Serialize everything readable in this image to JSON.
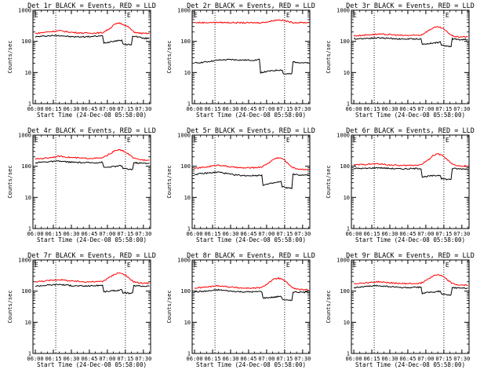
{
  "figure": {
    "subtitle": "Start Time (24-Dec-08 05:58:00)",
    "ylabel": "Counts/sec",
    "x_ticks": [
      "06:00",
      "06:15",
      "06:30",
      "06:45",
      "07:00",
      "07:15",
      "07:30"
    ],
    "y_ticks": [
      "1",
      "10",
      "100",
      "1000"
    ],
    "marker": "E",
    "colors": {
      "events": "#000000",
      "lld": "#ff0000"
    }
  },
  "chart_data": [
    {
      "type": "line",
      "title": "Det 1r BLACK = Events, RED = LLD",
      "xlabel": "Start Time (24-Dec-08 05:58:00)",
      "ylabel": "Counts/sec",
      "xlim": [
        -2,
        96
      ],
      "ylim": [
        1,
        1000
      ],
      "yscale": "log",
      "marker_lines_min": [
        17,
        75
      ],
      "series": [
        {
          "name": "Events",
          "color": "#000000",
          "x": [
            0,
            10,
            20,
            30,
            40,
            50,
            56,
            57,
            62,
            63,
            68,
            72,
            73,
            78,
            80,
            81,
            85,
            88,
            89,
            95
          ],
          "values": [
            140,
            150,
            155,
            140,
            140,
            145,
            150,
            90,
            95,
            100,
            105,
            110,
            80,
            80,
            75,
            150,
            140,
            135,
            125,
            125
          ]
        },
        {
          "name": "LLD",
          "color": "#ff0000",
          "x": [
            0,
            10,
            20,
            30,
            40,
            50,
            56,
            62,
            66,
            70,
            74,
            78,
            82,
            86,
            90,
            95
          ],
          "values": [
            180,
            200,
            220,
            195,
            185,
            185,
            190,
            260,
            350,
            390,
            340,
            280,
            200,
            185,
            180,
            180
          ]
        }
      ]
    },
    {
      "type": "line",
      "title": "Det 2r BLACK = Events, RED = LLD",
      "xlabel": "Start Time (24-Dec-08 05:58:00)",
      "ylabel": "Counts/sec",
      "xlim": [
        -2,
        96
      ],
      "ylim": [
        1,
        1000
      ],
      "yscale": "log",
      "marker_lines_min": [
        17,
        75
      ],
      "series": [
        {
          "name": "Events",
          "color": "#000000",
          "x": [
            0,
            10,
            20,
            30,
            40,
            50,
            54,
            55,
            62,
            70,
            73,
            74,
            78,
            81,
            82,
            88,
            95
          ],
          "values": [
            20,
            22,
            25,
            26,
            25,
            25,
            26,
            10,
            11,
            12,
            12,
            9,
            9,
            9,
            22,
            21,
            20
          ]
        },
        {
          "name": "LLD",
          "color": "#ff0000",
          "x": [
            0,
            10,
            20,
            30,
            40,
            50,
            56,
            62,
            66,
            70,
            74,
            78,
            82,
            88,
            95
          ],
          "values": [
            400,
            400,
            405,
            400,
            395,
            395,
            400,
            430,
            470,
            490,
            470,
            430,
            400,
            400,
            400
          ]
        }
      ]
    },
    {
      "type": "line",
      "title": "Det 3r BLACK = Events, RED = LLD",
      "xlabel": "Start Time (24-Dec-08 05:58:00)",
      "ylabel": "Counts/sec",
      "xlim": [
        -2,
        96
      ],
      "ylim": [
        1,
        1000
      ],
      "yscale": "log",
      "marker_lines_min": [
        17,
        75
      ],
      "series": [
        {
          "name": "Events",
          "color": "#000000",
          "x": [
            0,
            10,
            20,
            30,
            40,
            50,
            56,
            57,
            62,
            68,
            72,
            73,
            78,
            81,
            82,
            88,
            95
          ],
          "values": [
            120,
            125,
            130,
            125,
            118,
            120,
            120,
            80,
            85,
            90,
            95,
            75,
            70,
            70,
            120,
            115,
            115
          ]
        },
        {
          "name": "LLD",
          "color": "#ff0000",
          "x": [
            0,
            10,
            20,
            30,
            40,
            50,
            56,
            62,
            66,
            70,
            74,
            78,
            82,
            86,
            90,
            95
          ],
          "values": [
            150,
            160,
            170,
            165,
            155,
            155,
            160,
            220,
            270,
            290,
            260,
            200,
            150,
            140,
            140,
            140
          ]
        }
      ]
    },
    {
      "type": "line",
      "title": "Det 4r BLACK = Events, RED = LLD",
      "xlabel": "Start Time (24-Dec-08 05:58:00)",
      "ylabel": "Counts/sec",
      "xlim": [
        -2,
        96
      ],
      "ylim": [
        1,
        1000
      ],
      "yscale": "log",
      "marker_lines_min": [
        17,
        75
      ],
      "series": [
        {
          "name": "Events",
          "color": "#000000",
          "x": [
            0,
            10,
            20,
            30,
            40,
            50,
            56,
            57,
            62,
            68,
            72,
            73,
            78,
            81,
            82,
            88,
            95
          ],
          "values": [
            130,
            140,
            145,
            135,
            130,
            130,
            135,
            90,
            95,
            100,
            105,
            85,
            80,
            80,
            130,
            125,
            125
          ]
        },
        {
          "name": "LLD",
          "color": "#ff0000",
          "x": [
            0,
            10,
            20,
            30,
            40,
            50,
            56,
            62,
            66,
            70,
            74,
            78,
            82,
            86,
            90,
            95
          ],
          "values": [
            170,
            185,
            210,
            190,
            180,
            180,
            185,
            250,
            310,
            340,
            300,
            240,
            180,
            165,
            160,
            160
          ]
        }
      ]
    },
    {
      "type": "line",
      "title": "Det 5r BLACK = Events, RED = LLD",
      "xlabel": "Start Time (24-Dec-08 05:58:00)",
      "ylabel": "Counts/sec",
      "xlim": [
        -2,
        96
      ],
      "ylim": [
        1,
        1000
      ],
      "yscale": "log",
      "marker_lines_min": [
        17,
        75
      ],
      "series": [
        {
          "name": "Events",
          "color": "#000000",
          "x": [
            0,
            10,
            20,
            30,
            40,
            50,
            56,
            57,
            62,
            68,
            72,
            73,
            78,
            81,
            82,
            88,
            95
          ],
          "values": [
            55,
            60,
            65,
            55,
            50,
            50,
            52,
            25,
            27,
            30,
            32,
            22,
            20,
            20,
            55,
            52,
            52
          ]
        },
        {
          "name": "LLD",
          "color": "#ff0000",
          "x": [
            0,
            10,
            20,
            30,
            40,
            50,
            56,
            62,
            66,
            70,
            74,
            78,
            82,
            86,
            90,
            95
          ],
          "values": [
            85,
            95,
            110,
            95,
            88,
            90,
            95,
            130,
            170,
            190,
            170,
            120,
            90,
            82,
            80,
            80
          ]
        }
      ]
    },
    {
      "type": "line",
      "title": "Det 6r BLACK = Events, RED = LLD",
      "xlabel": "Start Time (24-Dec-08 05:58:00)",
      "ylabel": "Counts/sec",
      "xlim": [
        -2,
        96
      ],
      "ylim": [
        1,
        1000
      ],
      "yscale": "log",
      "marker_lines_min": [
        17,
        75
      ],
      "series": [
        {
          "name": "Events",
          "color": "#000000",
          "x": [
            0,
            10,
            20,
            30,
            40,
            50,
            56,
            57,
            62,
            68,
            72,
            73,
            78,
            81,
            82,
            88,
            95
          ],
          "values": [
            85,
            85,
            90,
            85,
            82,
            84,
            85,
            45,
            48,
            50,
            52,
            40,
            38,
            38,
            85,
            82,
            82
          ]
        },
        {
          "name": "LLD",
          "color": "#ff0000",
          "x": [
            0,
            10,
            20,
            30,
            40,
            50,
            56,
            62,
            66,
            70,
            74,
            78,
            82,
            86,
            90,
            95
          ],
          "values": [
            110,
            115,
            120,
            110,
            105,
            108,
            112,
            160,
            220,
            250,
            220,
            160,
            115,
            105,
            100,
            100
          ]
        }
      ]
    },
    {
      "type": "line",
      "title": "Det 7r BLACK = Events, RED = LLD",
      "xlabel": "Start Time (24-Dec-08 05:58:00)",
      "ylabel": "Counts/sec",
      "xlim": [
        -2,
        96
      ],
      "ylim": [
        1,
        1000
      ],
      "yscale": "log",
      "marker_lines_min": [
        17,
        75
      ],
      "series": [
        {
          "name": "Events",
          "color": "#000000",
          "x": [
            0,
            10,
            20,
            30,
            40,
            50,
            56,
            57,
            62,
            68,
            72,
            73,
            78,
            81,
            82,
            88,
            95
          ],
          "values": [
            145,
            155,
            165,
            150,
            145,
            150,
            155,
            95,
            100,
            105,
            110,
            90,
            85,
            85,
            150,
            145,
            145
          ]
        },
        {
          "name": "LLD",
          "color": "#ff0000",
          "x": [
            0,
            10,
            20,
            30,
            40,
            50,
            56,
            62,
            66,
            70,
            74,
            78,
            82,
            86,
            90,
            95
          ],
          "values": [
            200,
            215,
            235,
            210,
            200,
            200,
            205,
            280,
            350,
            390,
            340,
            260,
            200,
            185,
            180,
            180
          ]
        }
      ]
    },
    {
      "type": "line",
      "title": "Det 8r BLACK = Events, RED = LLD",
      "xlabel": "Start Time (24-Dec-08 05:58:00)",
      "ylabel": "Counts/sec",
      "xlim": [
        -2,
        96
      ],
      "ylim": [
        1,
        1000
      ],
      "yscale": "log",
      "marker_lines_min": [
        17,
        75
      ],
      "series": [
        {
          "name": "Events",
          "color": "#000000",
          "x": [
            0,
            10,
            20,
            30,
            40,
            50,
            56,
            57,
            62,
            68,
            72,
            73,
            78,
            81,
            82,
            88,
            95
          ],
          "values": [
            95,
            100,
            110,
            100,
            95,
            95,
            98,
            60,
            62,
            65,
            70,
            55,
            50,
            50,
            95,
            92,
            92
          ]
        },
        {
          "name": "LLD",
          "color": "#ff0000",
          "x": [
            0,
            10,
            20,
            30,
            40,
            50,
            56,
            62,
            66,
            70,
            74,
            78,
            82,
            86,
            90,
            95
          ],
          "values": [
            125,
            135,
            150,
            135,
            125,
            125,
            130,
            190,
            240,
            260,
            230,
            170,
            125,
            115,
            110,
            110
          ]
        }
      ]
    },
    {
      "type": "line",
      "title": "Det 9r BLACK = Events, RED = LLD",
      "xlabel": "Start Time (24-Dec-08 05:58:00)",
      "ylabel": "Counts/sec",
      "xlim": [
        -2,
        96
      ],
      "ylim": [
        1,
        1000
      ],
      "yscale": "log",
      "marker_lines_min": [
        17,
        75
      ],
      "series": [
        {
          "name": "Events",
          "color": "#000000",
          "x": [
            0,
            10,
            20,
            30,
            40,
            50,
            56,
            57,
            62,
            68,
            72,
            73,
            78,
            81,
            82,
            88,
            95
          ],
          "values": [
            130,
            140,
            150,
            140,
            130,
            130,
            135,
            85,
            90,
            95,
            100,
            80,
            75,
            75,
            130,
            125,
            125
          ]
        },
        {
          "name": "LLD",
          "color": "#ff0000",
          "x": [
            0,
            10,
            20,
            30,
            40,
            50,
            56,
            62,
            66,
            70,
            74,
            78,
            82,
            86,
            90,
            95
          ],
          "values": [
            175,
            185,
            200,
            185,
            175,
            175,
            180,
            250,
            310,
            340,
            300,
            230,
            175,
            160,
            155,
            155
          ]
        }
      ]
    }
  ]
}
